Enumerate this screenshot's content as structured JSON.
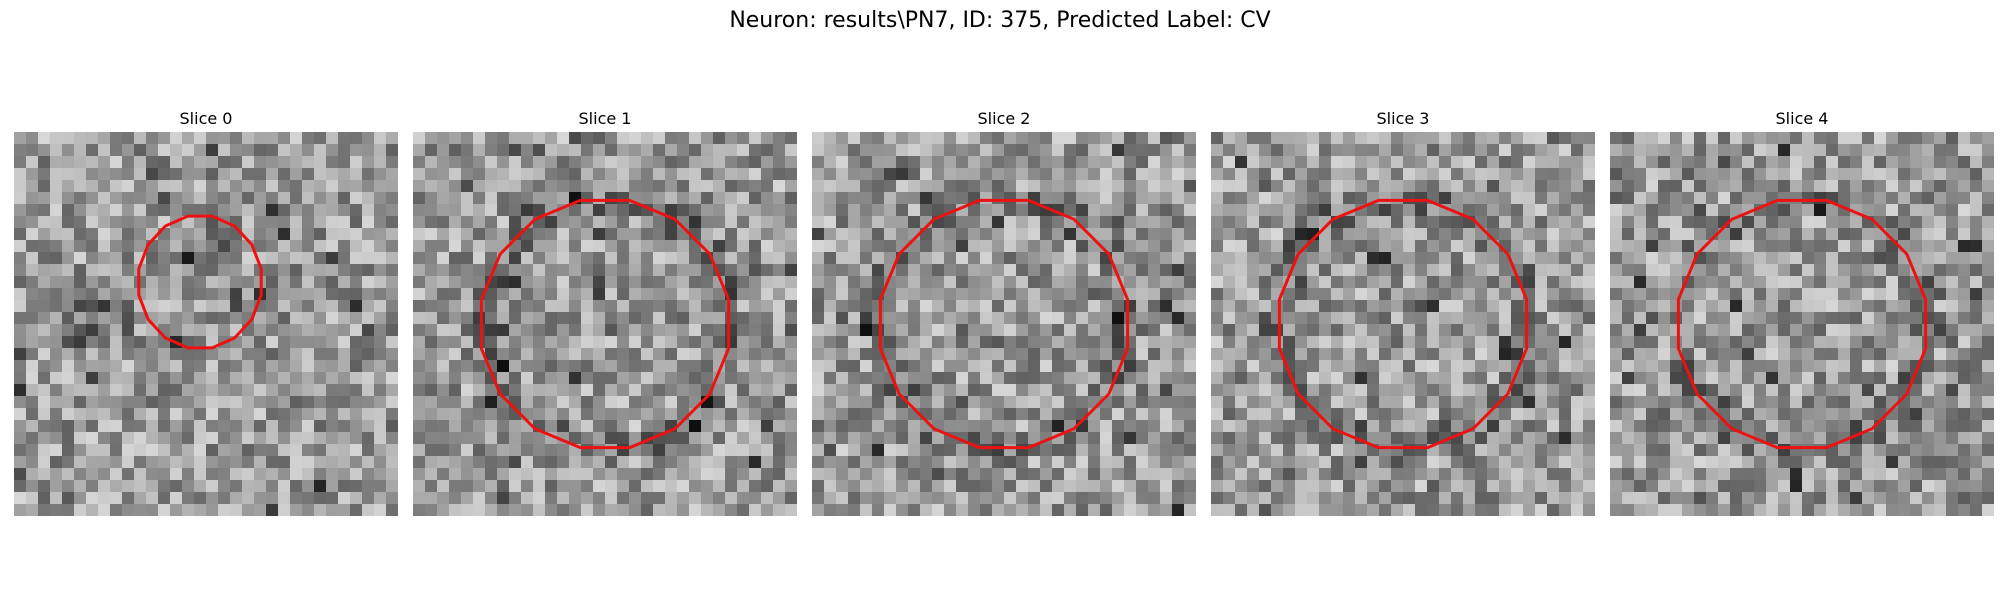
{
  "figure": {
    "title": "Neuron: results\\PN7, ID: 375, Predicted Label: CV"
  },
  "slices": [
    {
      "title": "Slice 0",
      "seed": 11,
      "ring": "small"
    },
    {
      "title": "Slice 1",
      "seed": 23,
      "ring": "large"
    },
    {
      "title": "Slice 2",
      "seed": 37,
      "ring": "large"
    },
    {
      "title": "Slice 3",
      "seed": 41,
      "ring": "large"
    },
    {
      "title": "Slice 4",
      "seed": 59,
      "ring": "large"
    }
  ],
  "colors": {
    "contour": "#ee1111",
    "background": "#ffffff"
  }
}
